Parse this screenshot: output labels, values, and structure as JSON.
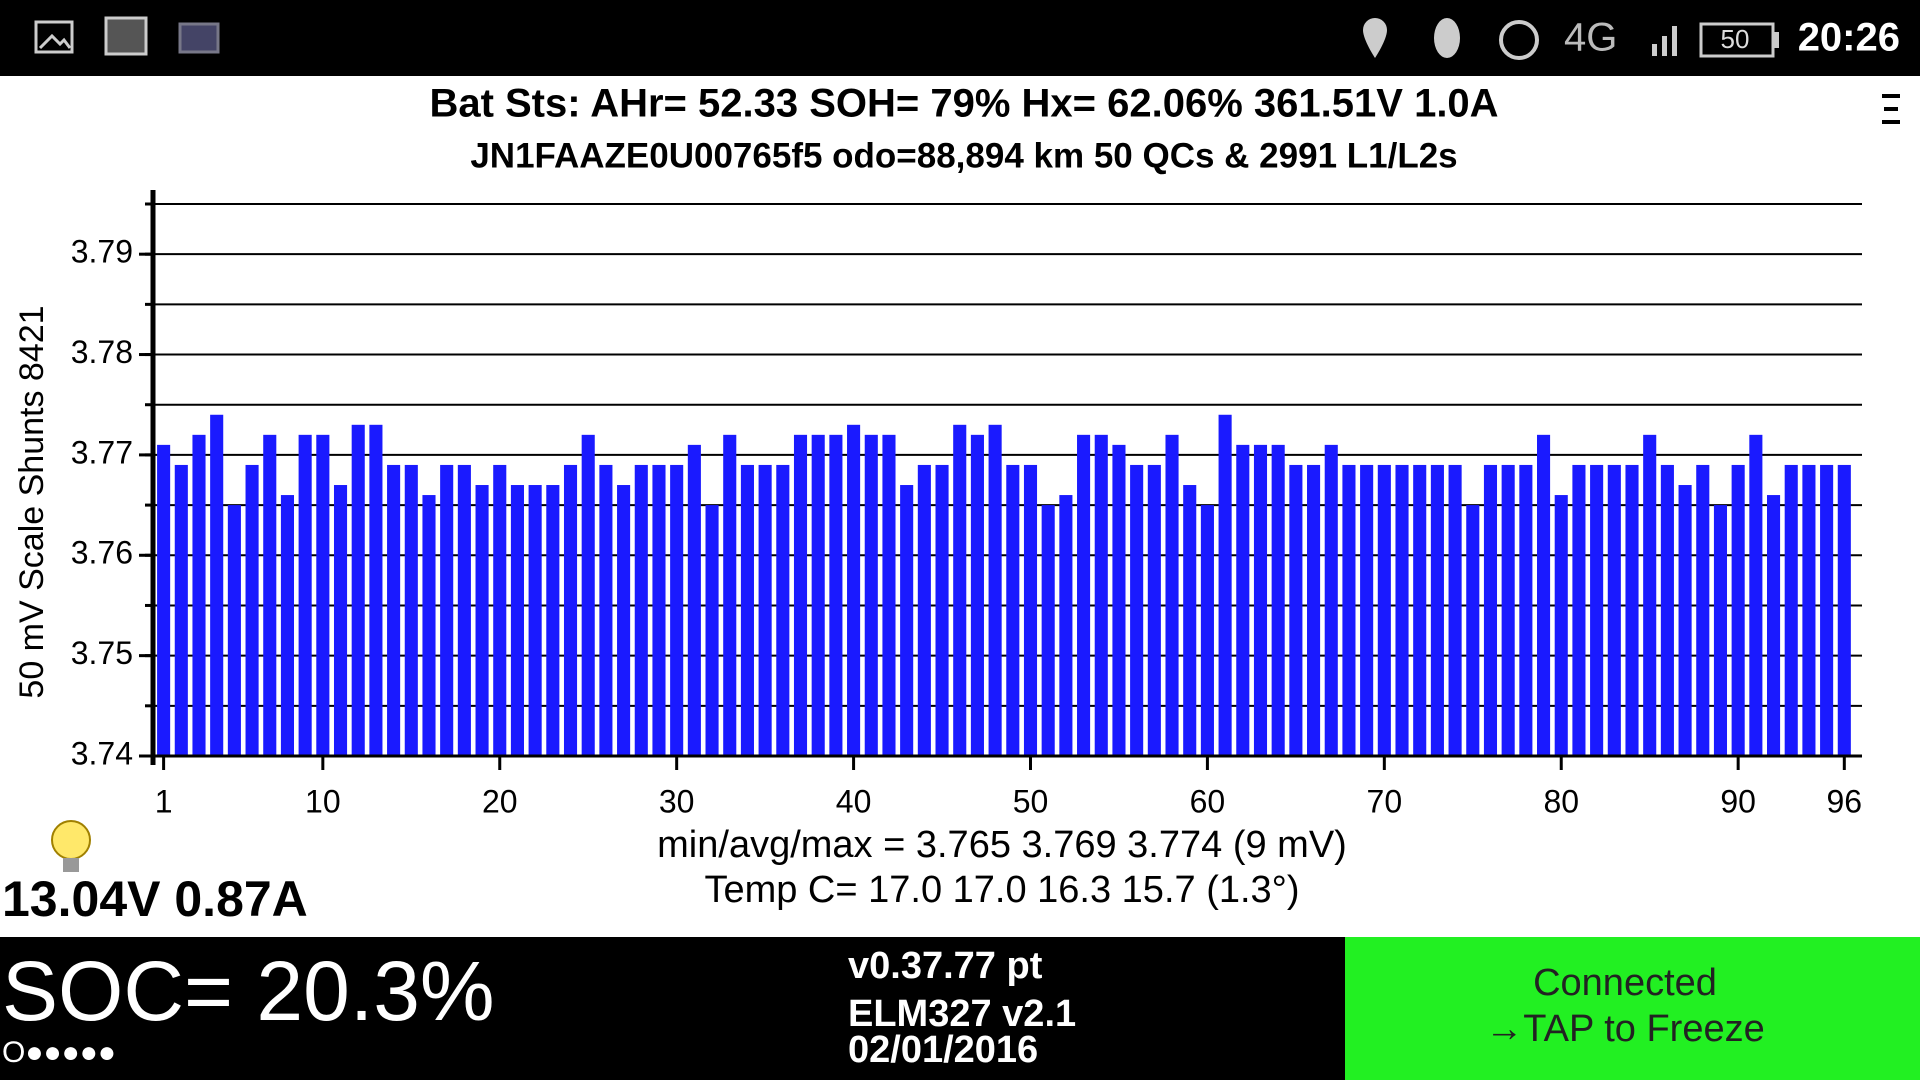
{
  "status_bar": {
    "network": "4G",
    "battery": "50",
    "time": "20:26"
  },
  "header": {
    "line1": "Bat Sts:  AHr= 52.33  SOH= 79%   Hx= 62.06%   361.51V 1.0A",
    "line2": "JN1FAAZE0U00765f5 odo=88,894 km  50 QCs & 2991 L1/L2s"
  },
  "chart_data": {
    "type": "bar",
    "ylabel": "50 mV Scale   Shunts 8421",
    "color": "#1a1aff",
    "x": [
      1,
      2,
      3,
      4,
      5,
      6,
      7,
      8,
      9,
      10,
      11,
      12,
      13,
      14,
      15,
      16,
      17,
      18,
      19,
      20,
      21,
      22,
      23,
      24,
      25,
      26,
      27,
      28,
      29,
      30,
      31,
      32,
      33,
      34,
      35,
      36,
      37,
      38,
      39,
      40,
      41,
      42,
      43,
      44,
      45,
      46,
      47,
      48,
      49,
      50,
      51,
      52,
      53,
      54,
      55,
      56,
      57,
      58,
      59,
      60,
      61,
      62,
      63,
      64,
      65,
      66,
      67,
      68,
      69,
      70,
      71,
      72,
      73,
      74,
      75,
      76,
      77,
      78,
      79,
      80,
      81,
      82,
      83,
      84,
      85,
      86,
      87,
      88,
      89,
      90,
      91,
      92,
      93,
      94,
      95,
      96
    ],
    "values": [
      3.771,
      3.769,
      3.772,
      3.774,
      3.765,
      3.769,
      3.772,
      3.766,
      3.772,
      3.772,
      3.767,
      3.773,
      3.773,
      3.769,
      3.769,
      3.766,
      3.769,
      3.769,
      3.767,
      3.769,
      3.767,
      3.767,
      3.767,
      3.769,
      3.772,
      3.769,
      3.767,
      3.769,
      3.769,
      3.769,
      3.771,
      3.765,
      3.772,
      3.769,
      3.769,
      3.769,
      3.772,
      3.772,
      3.772,
      3.773,
      3.772,
      3.772,
      3.767,
      3.769,
      3.769,
      3.773,
      3.772,
      3.773,
      3.769,
      3.769,
      3.765,
      3.766,
      3.772,
      3.772,
      3.771,
      3.769,
      3.769,
      3.772,
      3.767,
      3.765,
      3.774,
      3.771,
      3.771,
      3.771,
      3.769,
      3.769,
      3.771,
      3.769,
      3.769,
      3.769,
      3.769,
      3.769,
      3.769,
      3.769,
      3.765,
      3.769,
      3.769,
      3.769,
      3.772,
      3.766,
      3.769,
      3.769,
      3.769,
      3.769,
      3.772,
      3.769,
      3.767,
      3.769,
      3.765,
      3.769,
      3.772,
      3.766,
      3.769,
      3.769,
      3.769,
      3.769
    ],
    "xlim": [
      0.4,
      97
    ],
    "xticks": [
      1,
      10,
      20,
      30,
      40,
      50,
      60,
      70,
      80,
      90,
      96
    ],
    "ylim": [
      3.74,
      3.795
    ],
    "yticks": [
      3.74,
      3.75,
      3.76,
      3.77,
      3.78,
      3.79
    ],
    "grid_lines": [
      3.745,
      3.75,
      3.755,
      3.76,
      3.765,
      3.77,
      3.775,
      3.78,
      3.785,
      3.79,
      3.795
    ],
    "grid": true
  },
  "stats": {
    "minavgmax": "min/avg/max = 3.765 3.769 3.774  (9 mV)",
    "temp": "Temp C= 17.0  17.0  16.3  15.7  (1.3°)",
    "aux": "13.04V 0.87A"
  },
  "footer": {
    "soc": "SOC= 20.3%",
    "dots": "O●●●●●",
    "version": "v0.37.77 pt",
    "adapter": "ELM327 v2.1",
    "date": "02/01/2016",
    "status": "Connected",
    "action": "→TAP to Freeze"
  }
}
